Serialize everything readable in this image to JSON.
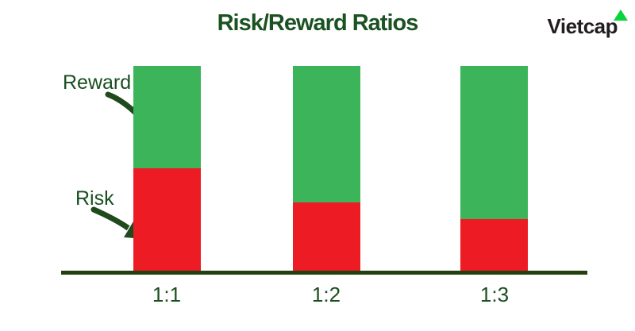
{
  "page": {
    "background": "#ffffff"
  },
  "header": {
    "title": "Risk/Reward Ratios",
    "title_color": "#1b5222"
  },
  "logo": {
    "text": "Vietcap",
    "text_color": "#221e1f",
    "triangle_color": "#08d53c"
  },
  "annotations": {
    "reward_label": "Reward",
    "risk_label": "Risk",
    "arrow_color": "#1e4a1c"
  },
  "chart_data": {
    "type": "bar",
    "stacked": true,
    "title": "Risk/Reward Ratios",
    "categories": [
      "1:1",
      "1:2",
      "1:3"
    ],
    "series": [
      {
        "name": "Risk",
        "color": "#ed1c24",
        "values": [
          1,
          1,
          1
        ]
      },
      {
        "name": "Reward",
        "color": "#3cb45a",
        "values": [
          1,
          2,
          3
        ]
      }
    ],
    "bars_equal_total_height": true,
    "xlabel": "",
    "ylabel": "",
    "axis_color": "#23400e",
    "label_color": "#1a4f1d",
    "grid": false,
    "legend_position": "none"
  }
}
